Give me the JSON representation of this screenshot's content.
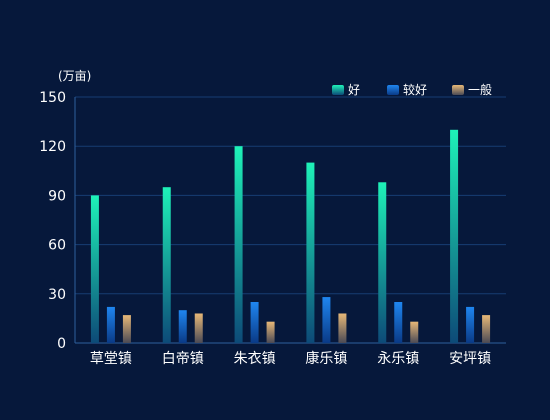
{
  "chart_data": {
    "type": "bar",
    "unit_label": "(万亩)",
    "categories": [
      "草堂镇",
      "白帝镇",
      "朱衣镇",
      "康乐镇",
      "永乐镇",
      "安坪镇"
    ],
    "series": [
      {
        "name": "好",
        "values": [
          90,
          95,
          120,
          110,
          98,
          130
        ],
        "color_top": "#1ef2b8",
        "color_bottom": "#0d4a78"
      },
      {
        "name": "较好",
        "values": [
          22,
          20,
          25,
          28,
          25,
          22
        ],
        "color_top": "#1f86f0",
        "color_bottom": "#0a3a86"
      },
      {
        "name": "一般",
        "values": [
          17,
          18,
          13,
          18,
          13,
          17
        ],
        "color_top": "#e7b878",
        "color_bottom": "#4b4a55"
      }
    ],
    "ylim": [
      0,
      150
    ],
    "yticks": [
      0,
      30,
      60,
      90,
      120,
      150
    ],
    "grid": true,
    "legend_position": "top-right",
    "colors": {
      "background": "#06183b",
      "grid": "#173c73",
      "axis": "#2e5f9c",
      "text": "#ffffff"
    }
  }
}
